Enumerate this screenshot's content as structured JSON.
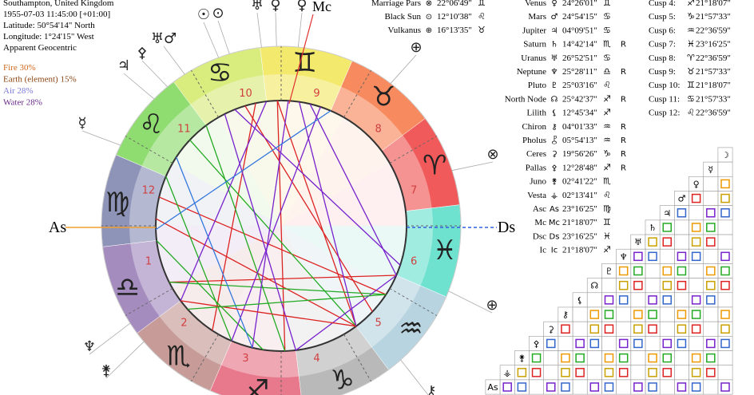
{
  "header": {
    "lines": [
      "Southampton, United Kingdom",
      "1955-07-03 11:45:00 [+01:00]",
      "Latitude: 50°54'14\" North",
      "Longitude: 1°24'15\" West",
      "Apparent Geocentric"
    ]
  },
  "elements": [
    "Fire 30%",
    "Earth (element) 15%",
    "Air 28%",
    "Water 28%"
  ],
  "wheel": {
    "signs": [
      "♈",
      "♉",
      "♊",
      "♋",
      "♌",
      "♍",
      "♎",
      "♏",
      "♐",
      "♑",
      "♒",
      "♓"
    ],
    "houses": [
      1,
      2,
      3,
      4,
      5,
      6,
      7,
      8,
      9,
      10,
      11,
      12
    ],
    "asc": "As",
    "ds": "Ds",
    "mc": "Mc",
    "outer_glyphs": [
      "☉",
      "⊙",
      "♅",
      "♀",
      "♀",
      "♅♂",
      "⚴",
      "♃",
      "☿",
      "♆",
      "⚵",
      "⊕",
      "⊗",
      "⊕",
      "⚷"
    ]
  },
  "positions_left": [
    [
      "Marriage Pars",
      "⊗",
      "22°06'49\"",
      "♊"
    ],
    [
      "Black Sun",
      "⊙",
      "12°10'38\"",
      "♌"
    ],
    [
      "Vulkanus",
      "⊕",
      "16°13'35\"",
      "♉"
    ]
  ],
  "positions": [
    [
      "Venus",
      "♀",
      "24°26'01\"",
      "♊"
    ],
    [
      "Mars",
      "♂",
      "24°54'15\"",
      "♋"
    ],
    [
      "Jupiter",
      "♃",
      "04°09'51\"",
      "♋"
    ],
    [
      "Saturn",
      "♄",
      "14°42'14\"",
      "♏",
      "R"
    ],
    [
      "Uranus",
      "♅",
      "26°52'51\"",
      "♋"
    ],
    [
      "Neptune",
      "♆",
      "25°28'11\"",
      "♎",
      "R"
    ],
    [
      "Pluto",
      "♇",
      "25°03'16\"",
      "♌"
    ],
    [
      "North Node",
      "☊",
      "25°42'37\"",
      "♐",
      "R"
    ],
    [
      "Lilith",
      "⚸",
      "12°45'34\"",
      "♐"
    ],
    [
      "Chiron",
      "⚷",
      "04°01'33\"",
      "♒",
      "R"
    ],
    [
      "Pholus",
      "⯛",
      "05°54'13\"",
      "♒",
      "R"
    ],
    [
      "Ceres",
      "⚳",
      "19°56'26\"",
      "♑",
      "R"
    ],
    [
      "Pallas",
      "⚴",
      "12°28'48\"",
      "♐",
      "R"
    ],
    [
      "Juno",
      "⚵",
      "02°41'22\"",
      "♏"
    ],
    [
      "Vesta",
      "⚶",
      "02°13'41\"",
      "♌"
    ],
    [
      "Asc",
      "As",
      "23°16'25\"",
      "♍"
    ],
    [
      "Mc",
      "Mc",
      "21°18'07\"",
      "♊"
    ],
    [
      "Dsc",
      "Ds",
      "23°16'25\"",
      "♓"
    ],
    [
      "Ic",
      "Ic",
      "21°18'07\"",
      "♐"
    ]
  ],
  "cusps": [
    [
      "Cusp 4:",
      "♐",
      "21°18'07\""
    ],
    [
      "Cusp 5:",
      "♑",
      "21°57'33\""
    ],
    [
      "Cusp 6:",
      "♒",
      "22°36'59\""
    ],
    [
      "Cusp 7:",
      "♓",
      "23°16'25\""
    ],
    [
      "Cusp 8:",
      "♈",
      "22°36'59\""
    ],
    [
      "Cusp 9:",
      "♉",
      "21°57'33\""
    ],
    [
      "Cusp 10:",
      "♊",
      "21°18'07\""
    ],
    [
      "Cusp 11:",
      "♋",
      "21°57'33\""
    ],
    [
      "Cusp 12:",
      "♌",
      "22°36'59\""
    ]
  ],
  "aspect_grid": {
    "glyphs": [
      "☽",
      "☿",
      "♀",
      "♂",
      "♃",
      "♄",
      "♅",
      "♆",
      "♇",
      "☊",
      "⚸",
      "⚷",
      "⚳",
      "⚴",
      "⚵",
      "⚶",
      "As"
    ]
  }
}
